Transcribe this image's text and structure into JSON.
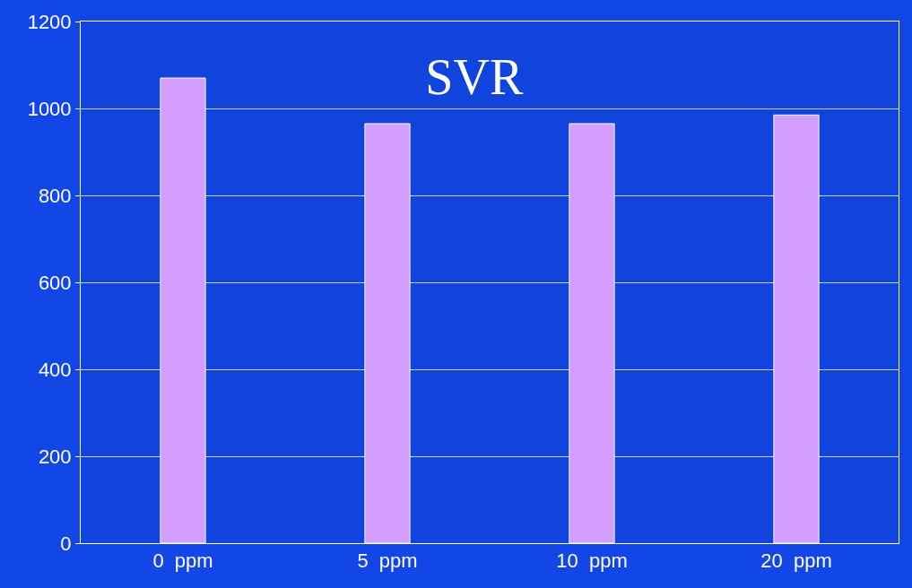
{
  "chart_data": {
    "type": "bar",
    "title": "SVR",
    "categories": [
      "0  ppm",
      "5  ppm",
      "10  ppm",
      "20  ppm"
    ],
    "values": [
      1070,
      965,
      965,
      985
    ],
    "color": "#d49eff",
    "ylim": [
      0,
      1200
    ],
    "yticks": [
      0,
      200,
      400,
      600,
      800,
      1000,
      1200
    ],
    "grid": "y"
  }
}
